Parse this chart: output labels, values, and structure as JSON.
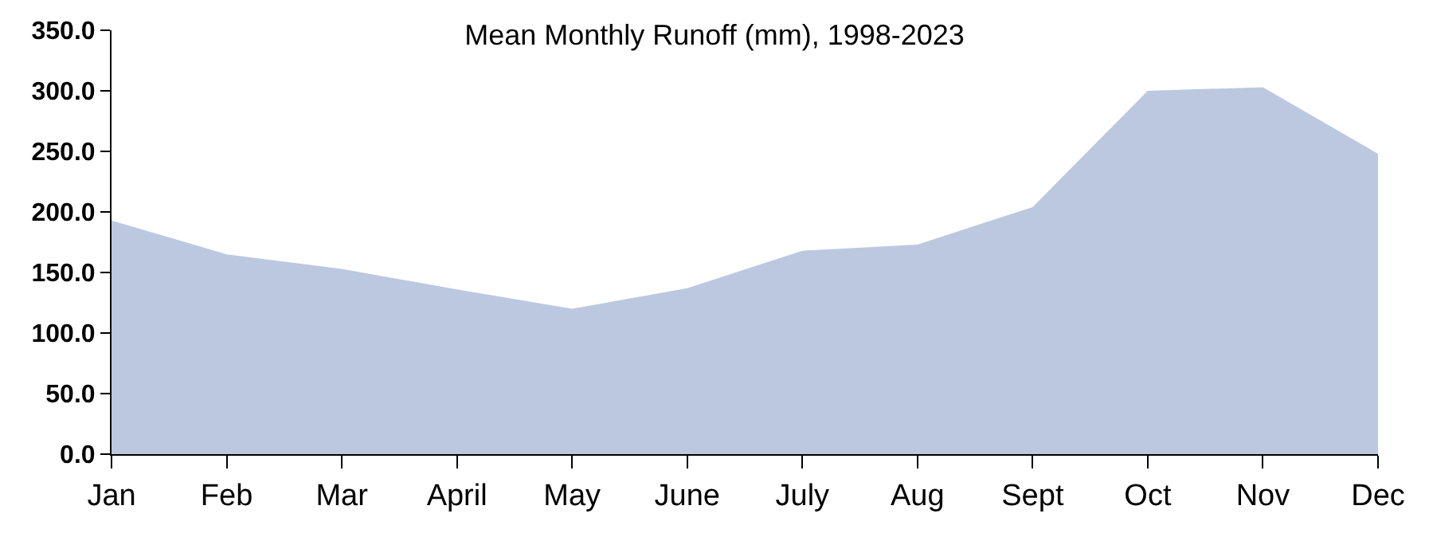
{
  "chart_data": {
    "type": "area",
    "title": "Mean Monthly Runoff (mm), 1998-2023",
    "categories": [
      "Jan",
      "Feb",
      "Mar",
      "April",
      "May",
      "June",
      "July",
      "Aug",
      "Sept",
      "Oct",
      "Nov",
      "Dec"
    ],
    "series": [
      {
        "color": "#bcc8e0",
        "values": [
          193,
          165,
          153,
          136,
          120,
          137,
          168,
          173,
          204,
          300,
          303,
          248
        ]
      }
    ],
    "ylim": [
      0,
      350
    ],
    "yticks": [
      {
        "value": 0,
        "label": "0.0"
      },
      {
        "value": 50,
        "label": "50.0"
      },
      {
        "value": 100,
        "label": "100.0"
      },
      {
        "value": 150,
        "label": "150.0"
      },
      {
        "value": 200,
        "label": "200.0"
      },
      {
        "value": 250,
        "label": "250.0"
      },
      {
        "value": 300,
        "label": "300.0"
      },
      {
        "value": 350,
        "label": "350.0"
      }
    ]
  }
}
